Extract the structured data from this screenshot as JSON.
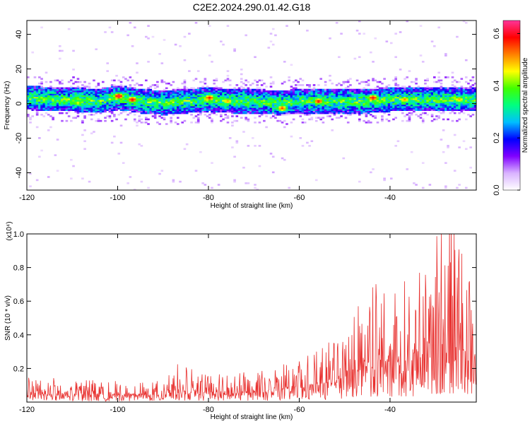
{
  "title": "C2E2.2024.290.01.42.G18",
  "chart_data": [
    {
      "type": "heatmap",
      "xlabel": "Height of straight line (km)",
      "ylabel": "Frequency (Hz)",
      "xlim": [
        -120,
        -21
      ],
      "ylim": [
        -50,
        48
      ],
      "xticks": [
        -120,
        -100,
        -80,
        -60,
        -40
      ],
      "yticks": [
        -40,
        -20,
        0,
        20,
        40
      ],
      "colorbar": {
        "label": "Normalized spectral amplitude",
        "range": [
          0.0,
          0.65
        ],
        "ticks": [
          0.0,
          0.2,
          0.4,
          0.6
        ],
        "colors": [
          "#ffffff",
          "#d9b3ff",
          "#8000ff",
          "#0000ff",
          "#00bfff",
          "#00ff80",
          "#40ff00",
          "#ffff00",
          "#ff8000",
          "#ff0000",
          "#ff3399"
        ]
      },
      "band_center_hz": [
        [
          -120,
          3
        ],
        [
          -115,
          2
        ],
        [
          -110,
          2
        ],
        [
          -105,
          1
        ],
        [
          -100,
          3
        ],
        [
          -95,
          1
        ],
        [
          -90,
          0
        ],
        [
          -85,
          1
        ],
        [
          -80,
          2
        ],
        [
          -75,
          1
        ],
        [
          -70,
          1
        ],
        [
          -65,
          0
        ],
        [
          -60,
          1
        ],
        [
          -55,
          1
        ],
        [
          -50,
          1
        ],
        [
          -45,
          1
        ],
        [
          -40,
          2
        ],
        [
          -35,
          2
        ],
        [
          -30,
          2
        ],
        [
          -25,
          2
        ],
        [
          -21,
          2
        ]
      ],
      "band_halfwidth_hz": 7,
      "hot_spots": [
        {
          "x": -100,
          "y": 4,
          "v": 0.62
        },
        {
          "x": -97,
          "y": 2,
          "v": 0.6
        },
        {
          "x": -80,
          "y": 3,
          "v": 0.58
        },
        {
          "x": -76,
          "y": 1,
          "v": 0.5
        },
        {
          "x": -64,
          "y": -3,
          "v": 0.55
        },
        {
          "x": -56,
          "y": 1,
          "v": 0.58
        },
        {
          "x": -44,
          "y": 3,
          "v": 0.6
        },
        {
          "x": -37,
          "y": 2,
          "v": 0.52
        },
        {
          "x": -25,
          "y": 2,
          "v": 0.5
        },
        {
          "x": -109,
          "y": 0,
          "v": 0.45
        }
      ]
    },
    {
      "type": "line",
      "xlabel": "Height of straight line (km)",
      "ylabel": "SNR (10 * v/v)",
      "y_multiplier": "(x10⁴)",
      "xlim": [
        -120,
        -21
      ],
      "ylim": [
        0,
        1.0
      ],
      "xticks": [
        -120,
        -100,
        -80,
        -60,
        -40
      ],
      "yticks": [
        0.2,
        0.4,
        0.6,
        0.8,
        1.0
      ],
      "color": "#e8312f",
      "envelope": {
        "x": [
          -120,
          -110,
          -100,
          -90,
          -88,
          -80,
          -70,
          -60,
          -55,
          -50,
          -48,
          -45,
          -40,
          -35,
          -30,
          -27,
          -24,
          -21
        ],
        "y": [
          0.12,
          0.11,
          0.1,
          0.1,
          0.19,
          0.13,
          0.15,
          0.2,
          0.26,
          0.34,
          0.5,
          0.55,
          0.58,
          0.6,
          0.85,
          0.95,
          0.7,
          0.45
        ]
      }
    }
  ]
}
